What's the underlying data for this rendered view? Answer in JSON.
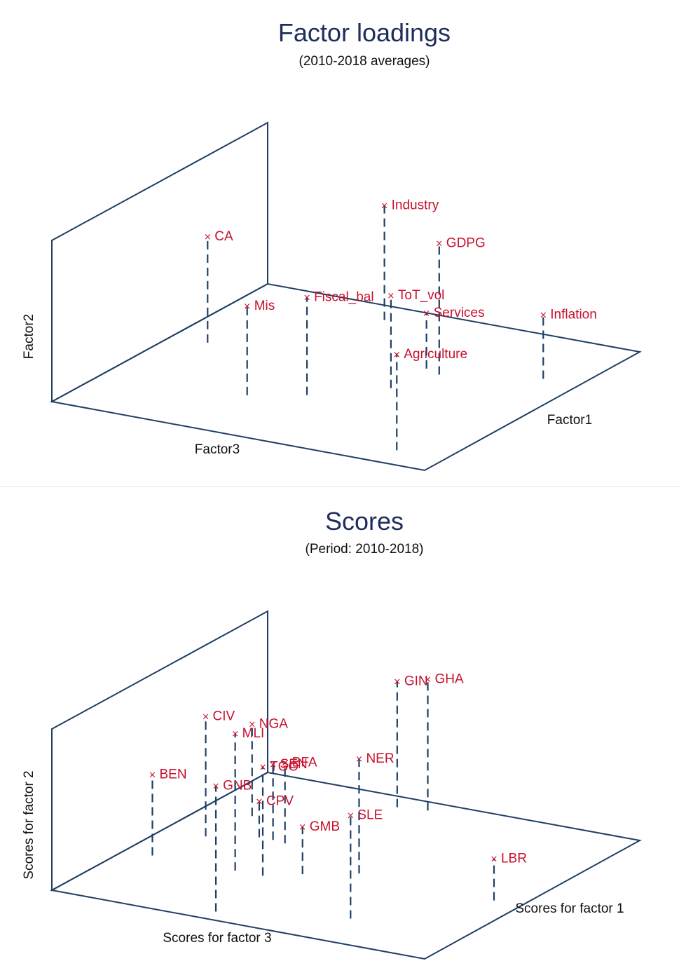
{
  "chart_data": [
    {
      "type": "scatter3d",
      "title": "Factor loadings",
      "subtitle": "(2010-2018 averages)",
      "x_label": "Factor1",
      "y_label": "Factor2",
      "z_label": "Factor3",
      "marker": "x",
      "drop_lines": true,
      "colors": {
        "frame": "#1f3f66",
        "points": "#c8102e",
        "title": "#1f2d5c"
      },
      "points": [
        {
          "label": "CA",
          "x": 0.16,
          "y": 0.55,
          "z": 0.92
        },
        {
          "label": "Mis",
          "x": -0.45,
          "y": 0.45,
          "z": 0.35
        },
        {
          "label": "Fiscal_bal",
          "x": -0.3,
          "y": 0.5,
          "z": 0.1
        },
        {
          "label": "GDPG",
          "x": 0.3,
          "y": 0.7,
          "z": -0.3
        },
        {
          "label": "Industry",
          "x": 0.9,
          "y": 0.6,
          "z": 0.35
        },
        {
          "label": "ToT_vol",
          "x": 0.0,
          "y": 0.47,
          "z": -0.2
        },
        {
          "label": "Agriculture",
          "x": -0.82,
          "y": 0.49,
          "z": -0.7
        },
        {
          "label": "Services",
          "x": 0.35,
          "y": 0.25,
          "z": -0.2
        },
        {
          "label": "Inflation",
          "x": 0.5,
          "y": 0.3,
          "z": -0.77
        }
      ]
    },
    {
      "type": "scatter3d",
      "title": "Scores",
      "subtitle": "(Period: 2010-2018)",
      "x_label": "Scores for factor 1",
      "y_label": "Scores for factor 2",
      "z_label": "Scores for factor 3",
      "marker": "x",
      "drop_lines": true,
      "colors": {
        "frame": "#1f3f66",
        "points": "#c8102e",
        "title": "#1f2d5c"
      },
      "points": [
        {
          "label": "GNB",
          "x": -1.5,
          "y": 1.0,
          "z": -0.2
        },
        {
          "label": "MLI",
          "x": -0.5,
          "y": 1.1,
          "z": 0.1
        },
        {
          "label": "NER",
          "x": -0.05,
          "y": 0.9,
          "z": -0.6
        },
        {
          "label": "CIV",
          "x": 0.15,
          "y": 0.95,
          "z": 0.6
        },
        {
          "label": "BFA",
          "x": 0.32,
          "y": 0.6,
          "z": 0.1
        },
        {
          "label": "BEN",
          "x": -0.5,
          "y": 0.6,
          "z": 0.7
        },
        {
          "label": "TGO",
          "x": -0.5,
          "y": 0.85,
          "z": -0.1
        },
        {
          "label": "SEN",
          "x": 0.35,
          "y": 0.55,
          "z": 0.2
        },
        {
          "label": "NGA",
          "x": 0.8,
          "y": 0.7,
          "z": 0.55
        },
        {
          "label": "GIN",
          "x": 1.6,
          "y": 1.0,
          "z": -0.15
        },
        {
          "label": "GHA",
          "x": 1.65,
          "y": 1.05,
          "z": -0.35
        },
        {
          "label": "GMB",
          "x": -0.3,
          "y": 0.3,
          "z": -0.3
        },
        {
          "label": "CPV",
          "x": 0.35,
          "y": 0.2,
          "z": 0.3
        },
        {
          "label": "SLE",
          "x": -1.1,
          "y": 0.8,
          "z": -1.0
        },
        {
          "label": "LBR",
          "x": -0.1,
          "y": 0.25,
          "z": -1.6
        }
      ]
    }
  ]
}
